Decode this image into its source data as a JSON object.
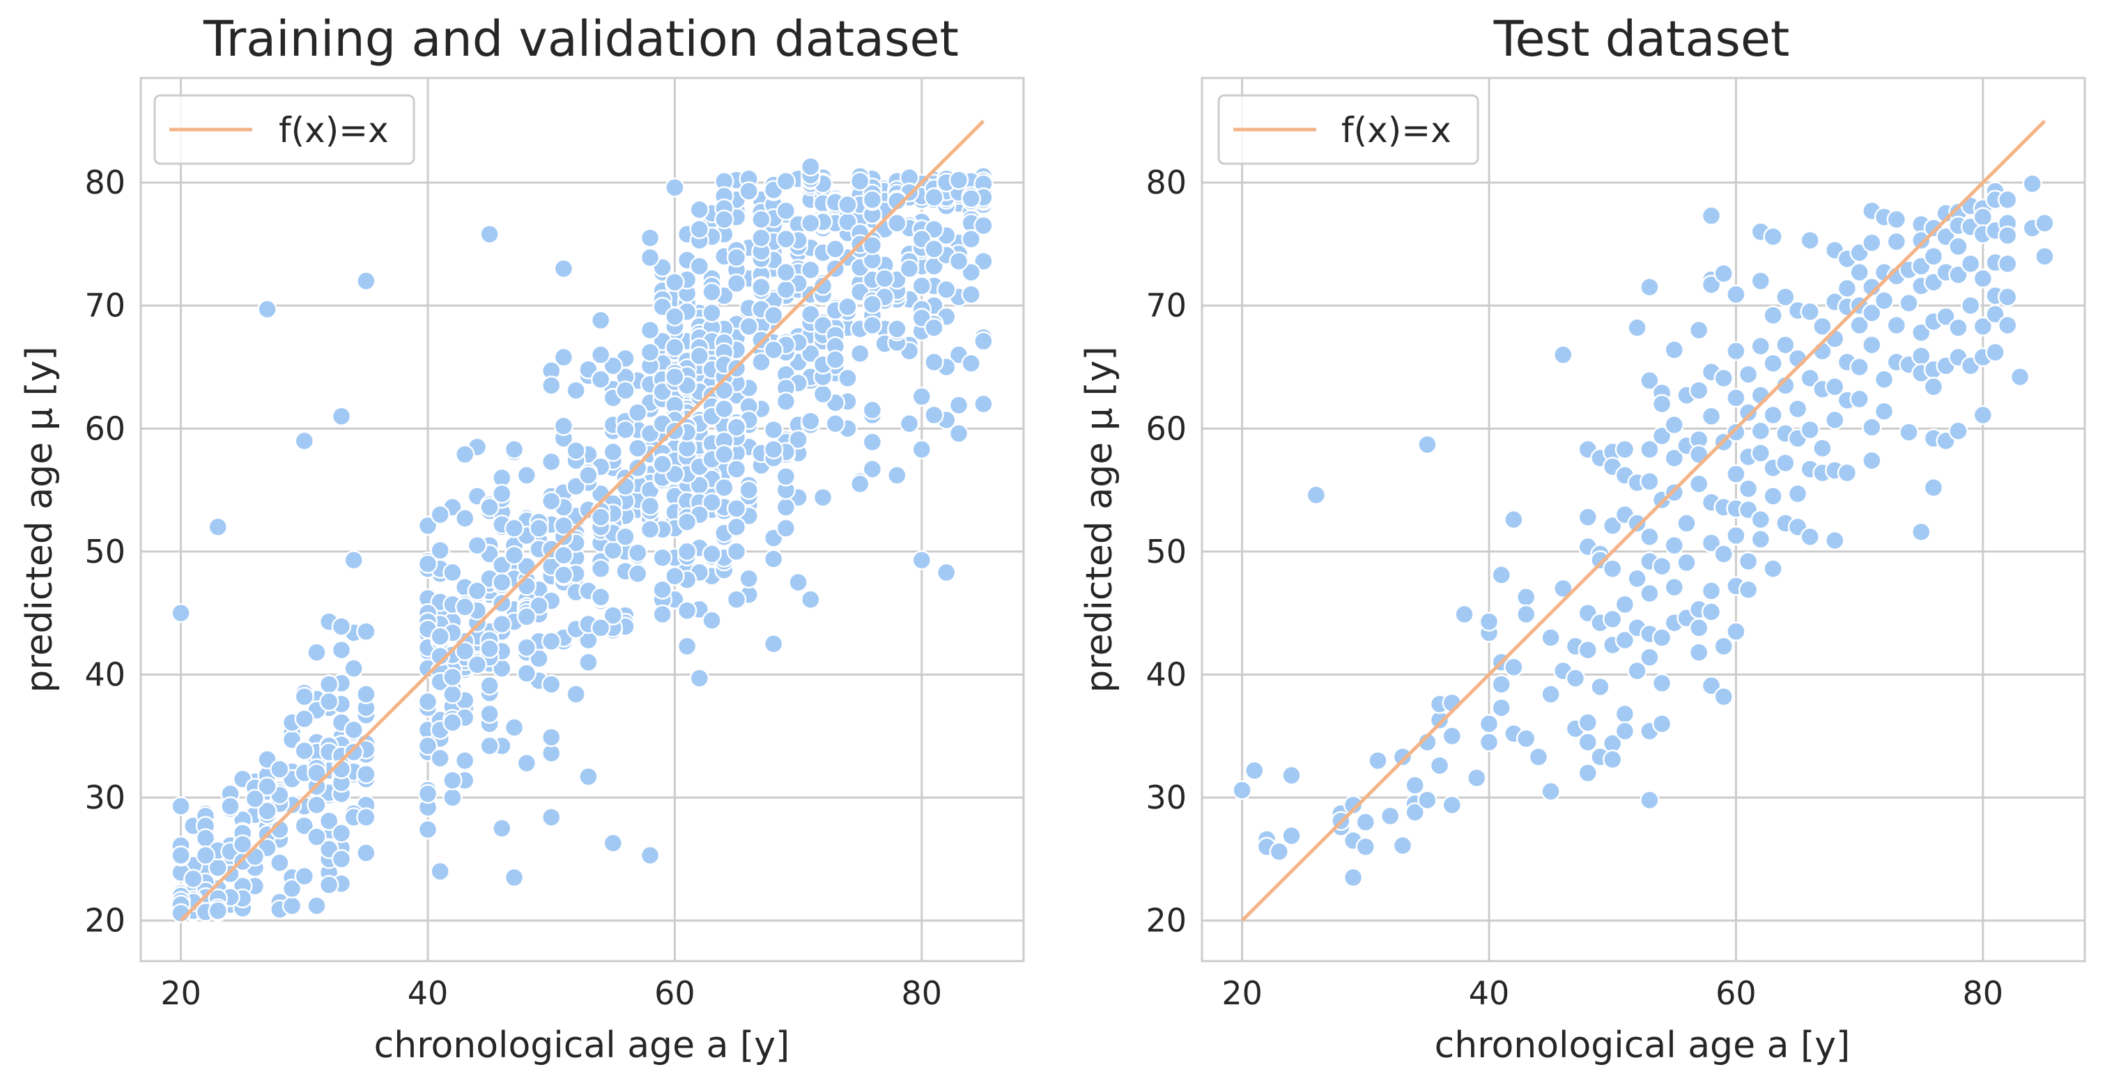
{
  "chart_data": [
    {
      "type": "scatter",
      "title": "Training and validation dataset",
      "xlabel": "chronological age a [y]",
      "ylabel": "predicted age µ [y]",
      "xlim": [
        16.75,
        88.25
      ],
      "ylim": [
        16.7,
        88.5
      ],
      "xticks": [
        20,
        40,
        60,
        80
      ],
      "yticks": [
        20,
        30,
        40,
        50,
        60,
        70,
        80
      ],
      "xtick_labels": [
        "20",
        "40",
        "60",
        "80"
      ],
      "ytick_labels": [
        "20",
        "30",
        "40",
        "50",
        "60",
        "70",
        "80"
      ],
      "grid": true,
      "legend": {
        "position": "top-left",
        "entries": [
          "f(x)=x"
        ]
      },
      "reference_line": {
        "label": "f(x)=x",
        "x": [
          20,
          85
        ],
        "y": [
          20,
          85
        ],
        "color": "#f4b487"
      },
      "point_color": "#a1c9f4",
      "n_points": 1300,
      "points_sample": [
        [
          27,
          69.7
        ],
        [
          35,
          72
        ],
        [
          45,
          75.8
        ],
        [
          20,
          45
        ],
        [
          23,
          52
        ],
        [
          30,
          59
        ],
        [
          33,
          61
        ],
        [
          46,
          27.5
        ],
        [
          47,
          23.5
        ],
        [
          55,
          26.3
        ],
        [
          58,
          25.3
        ],
        [
          53,
          31.7
        ],
        [
          62,
          39.7
        ],
        [
          80,
          49.3
        ],
        [
          71,
          81.3
        ],
        [
          83,
          80.2
        ],
        [
          85,
          62
        ],
        [
          51,
          73
        ],
        [
          70,
          47.5
        ],
        [
          75,
          55.5
        ]
      ]
    },
    {
      "type": "scatter",
      "title": "Test dataset",
      "xlabel": "chronological age a [y]",
      "ylabel": "predicted age µ [y]",
      "xlim": [
        16.75,
        88.25
      ],
      "ylim": [
        16.7,
        88.5
      ],
      "xticks": [
        20,
        40,
        60,
        80
      ],
      "yticks": [
        20,
        30,
        40,
        50,
        60,
        70,
        80
      ],
      "xtick_labels": [
        "20",
        "40",
        "60",
        "80"
      ],
      "ytick_labels": [
        "20",
        "30",
        "40",
        "50",
        "60",
        "70",
        "80"
      ],
      "grid": true,
      "legend": {
        "position": "top-left",
        "entries": [
          "f(x)=x"
        ]
      },
      "reference_line": {
        "label": "f(x)=x",
        "x": [
          20,
          85
        ],
        "y": [
          20,
          85
        ],
        "color": "#f4b487"
      },
      "point_color": "#a1c9f4",
      "points": [
        [
          20,
          30.6
        ],
        [
          21,
          32.2
        ],
        [
          22,
          26.6
        ],
        [
          22,
          26
        ],
        [
          23,
          25.6
        ],
        [
          24,
          31.8
        ],
        [
          24,
          26.9
        ],
        [
          26,
          54.6
        ],
        [
          28,
          28.7
        ],
        [
          28,
          27.6
        ],
        [
          28,
          28.1
        ],
        [
          29,
          29.4
        ],
        [
          29,
          23.5
        ],
        [
          29,
          26.5
        ],
        [
          30,
          26
        ],
        [
          30,
          28
        ],
        [
          31,
          33
        ],
        [
          32,
          28.5
        ],
        [
          33,
          33.3
        ],
        [
          33,
          26.1
        ],
        [
          34,
          29.5
        ],
        [
          34,
          31
        ],
        [
          34,
          28.8
        ],
        [
          35,
          58.7
        ],
        [
          35,
          34.5
        ],
        [
          35,
          29.8
        ],
        [
          36,
          36.3
        ],
        [
          36,
          37.6
        ],
        [
          36,
          32.6
        ],
        [
          37,
          37.7
        ],
        [
          37,
          35
        ],
        [
          37,
          29.4
        ],
        [
          38,
          44.9
        ],
        [
          39,
          31.6
        ],
        [
          40,
          43.4
        ],
        [
          40,
          44.3
        ],
        [
          40,
          36
        ],
        [
          40,
          34.5
        ],
        [
          41,
          48.1
        ],
        [
          41,
          39.2
        ],
        [
          41,
          37.3
        ],
        [
          41,
          41
        ],
        [
          42,
          52.6
        ],
        [
          42,
          40.6
        ],
        [
          42,
          35.2
        ],
        [
          43,
          46.3
        ],
        [
          43,
          44.9
        ],
        [
          43,
          34.8
        ],
        [
          44,
          33.3
        ],
        [
          45,
          43
        ],
        [
          45,
          38.4
        ],
        [
          45,
          30.5
        ],
        [
          46,
          66
        ],
        [
          46,
          47
        ],
        [
          46,
          40.3
        ],
        [
          47,
          39.7
        ],
        [
          47,
          35.6
        ],
        [
          47,
          42.3
        ],
        [
          48,
          58.3
        ],
        [
          48,
          52.8
        ],
        [
          48,
          50.4
        ],
        [
          48,
          45
        ],
        [
          48,
          42
        ],
        [
          48,
          36.1
        ],
        [
          48,
          34.5
        ],
        [
          48,
          32
        ],
        [
          49,
          57.6
        ],
        [
          49,
          49.8
        ],
        [
          49,
          49.3
        ],
        [
          49,
          44.2
        ],
        [
          49,
          39
        ],
        [
          49,
          33.3
        ],
        [
          50,
          58.1
        ],
        [
          50,
          56.9
        ],
        [
          50,
          52.1
        ],
        [
          50,
          48.6
        ],
        [
          50,
          44.5
        ],
        [
          50,
          42.4
        ],
        [
          50,
          34.4
        ],
        [
          50,
          33.1
        ],
        [
          51,
          58.3
        ],
        [
          51,
          56.2
        ],
        [
          51,
          53
        ],
        [
          51,
          45.7
        ],
        [
          51,
          42.8
        ],
        [
          51,
          36.8
        ],
        [
          51,
          35.4
        ],
        [
          52,
          68.2
        ],
        [
          52,
          55.6
        ],
        [
          52,
          52.3
        ],
        [
          52,
          47.8
        ],
        [
          52,
          43.8
        ],
        [
          52,
          40.3
        ],
        [
          53,
          71.5
        ],
        [
          53,
          63.9
        ],
        [
          53,
          58.3
        ],
        [
          53,
          55.7
        ],
        [
          53,
          51.2
        ],
        [
          53,
          49.2
        ],
        [
          53,
          46.6
        ],
        [
          53,
          43.3
        ],
        [
          53,
          41.4
        ],
        [
          53,
          35.4
        ],
        [
          53,
          29.8
        ],
        [
          54,
          62.9
        ],
        [
          54,
          62
        ],
        [
          54,
          59.4
        ],
        [
          54,
          54.2
        ],
        [
          54,
          48.8
        ],
        [
          54,
          43
        ],
        [
          54,
          39.3
        ],
        [
          54,
          36
        ],
        [
          55,
          66.4
        ],
        [
          55,
          60.3
        ],
        [
          55,
          57.6
        ],
        [
          55,
          54.8
        ],
        [
          55,
          50.5
        ],
        [
          55,
          47.1
        ],
        [
          55,
          44.2
        ],
        [
          56,
          62.7
        ],
        [
          56,
          58.6
        ],
        [
          56,
          52.3
        ],
        [
          56,
          49.1
        ],
        [
          56,
          44.6
        ],
        [
          57,
          68
        ],
        [
          57,
          63.1
        ],
        [
          57,
          59.1
        ],
        [
          57,
          57.9
        ],
        [
          57,
          55.5
        ],
        [
          57,
          45.3
        ],
        [
          57,
          43.8
        ],
        [
          57,
          41.8
        ],
        [
          58,
          77.3
        ],
        [
          58,
          72.1
        ],
        [
          58,
          71.7
        ],
        [
          58,
          64.6
        ],
        [
          58,
          61
        ],
        [
          58,
          54
        ],
        [
          58,
          50.7
        ],
        [
          58,
          46.8
        ],
        [
          58,
          45.1
        ],
        [
          58,
          39.1
        ],
        [
          59,
          72.6
        ],
        [
          59,
          64.1
        ],
        [
          59,
          58.9
        ],
        [
          59,
          53.6
        ],
        [
          59,
          49.8
        ],
        [
          59,
          42.3
        ],
        [
          59,
          38.2
        ],
        [
          60,
          70.9
        ],
        [
          60,
          66.3
        ],
        [
          60,
          62.5
        ],
        [
          60,
          59.7
        ],
        [
          60,
          56.3
        ],
        [
          60,
          53.5
        ],
        [
          60,
          51.3
        ],
        [
          60,
          47.2
        ],
        [
          60,
          43.5
        ],
        [
          61,
          64.4
        ],
        [
          61,
          61.3
        ],
        [
          61,
          57.7
        ],
        [
          61,
          55.1
        ],
        [
          61,
          53.4
        ],
        [
          61,
          49.2
        ],
        [
          61,
          46.9
        ],
        [
          62,
          76
        ],
        [
          62,
          72
        ],
        [
          62,
          66.7
        ],
        [
          62,
          62.7
        ],
        [
          62,
          59.8
        ],
        [
          62,
          58
        ],
        [
          62,
          52.6
        ],
        [
          62,
          51
        ],
        [
          63,
          75.6
        ],
        [
          63,
          69.2
        ],
        [
          63,
          65.3
        ],
        [
          63,
          61.1
        ],
        [
          63,
          56.8
        ],
        [
          63,
          54.5
        ],
        [
          63,
          48.6
        ],
        [
          64,
          70.7
        ],
        [
          64,
          66.8
        ],
        [
          64,
          63.5
        ],
        [
          64,
          59.6
        ],
        [
          64,
          57.2
        ],
        [
          64,
          52.3
        ],
        [
          65,
          69.6
        ],
        [
          65,
          65.7
        ],
        [
          65,
          61.6
        ],
        [
          65,
          59.2
        ],
        [
          65,
          54.7
        ],
        [
          65,
          52
        ],
        [
          66,
          75.3
        ],
        [
          66,
          69.5
        ],
        [
          66,
          64.1
        ],
        [
          66,
          59.9
        ],
        [
          66,
          56.7
        ],
        [
          66,
          51.2
        ],
        [
          67,
          68.3
        ],
        [
          67,
          66.3
        ],
        [
          67,
          63.2
        ],
        [
          67,
          58.4
        ],
        [
          67,
          56.4
        ],
        [
          68,
          74.5
        ],
        [
          68,
          70.3
        ],
        [
          68,
          67.3
        ],
        [
          68,
          63.4
        ],
        [
          68,
          60.7
        ],
        [
          68,
          56.6
        ],
        [
          68,
          50.9
        ],
        [
          69,
          73.8
        ],
        [
          69,
          71.4
        ],
        [
          69,
          69.9
        ],
        [
          69,
          65.4
        ],
        [
          69,
          62.3
        ],
        [
          69,
          56.4
        ],
        [
          70,
          74.3
        ],
        [
          70,
          72.7
        ],
        [
          70,
          70
        ],
        [
          70,
          68.4
        ],
        [
          70,
          65
        ],
        [
          70,
          62.4
        ],
        [
          71,
          77.7
        ],
        [
          71,
          75.1
        ],
        [
          71,
          71.5
        ],
        [
          71,
          69.4
        ],
        [
          71,
          66.8
        ],
        [
          71,
          60.1
        ],
        [
          71,
          57.4
        ],
        [
          72,
          77.2
        ],
        [
          72,
          72.7
        ],
        [
          72,
          70.4
        ],
        [
          72,
          64
        ],
        [
          72,
          61.4
        ],
        [
          73,
          77
        ],
        [
          73,
          75.2
        ],
        [
          73,
          72.4
        ],
        [
          73,
          68.4
        ],
        [
          73,
          65.4
        ],
        [
          74,
          72.9
        ],
        [
          74,
          70.2
        ],
        [
          74,
          65.2
        ],
        [
          74,
          59.7
        ],
        [
          75,
          76.6
        ],
        [
          75,
          75.3
        ],
        [
          75,
          73.2
        ],
        [
          75,
          71.6
        ],
        [
          75,
          67.8
        ],
        [
          75,
          65.9
        ],
        [
          75,
          64.5
        ],
        [
          75,
          51.6
        ],
        [
          76,
          76.3
        ],
        [
          76,
          74
        ],
        [
          76,
          71.9
        ],
        [
          76,
          68.7
        ],
        [
          76,
          64.8
        ],
        [
          76,
          63.4
        ],
        [
          76,
          59.2
        ],
        [
          76,
          55.2
        ],
        [
          77,
          77.5
        ],
        [
          77,
          75.6
        ],
        [
          77,
          72.7
        ],
        [
          77,
          69.1
        ],
        [
          77,
          65.1
        ],
        [
          77,
          59
        ],
        [
          78,
          77.6
        ],
        [
          78,
          76.5
        ],
        [
          78,
          74.8
        ],
        [
          78,
          72.5
        ],
        [
          78,
          68.2
        ],
        [
          78,
          65.8
        ],
        [
          78,
          59.8
        ],
        [
          79,
          78.1
        ],
        [
          79,
          76.4
        ],
        [
          79,
          73.4
        ],
        [
          79,
          70
        ],
        [
          79,
          65.1
        ],
        [
          80,
          77.9
        ],
        [
          80,
          77.2
        ],
        [
          80,
          75.8
        ],
        [
          80,
          72.2
        ],
        [
          80,
          68.3
        ],
        [
          80,
          65.8
        ],
        [
          80,
          61.1
        ],
        [
          81,
          79.3
        ],
        [
          81,
          78.6
        ],
        [
          81,
          76.1
        ],
        [
          81,
          73.5
        ],
        [
          81,
          70.8
        ],
        [
          81,
          69.3
        ],
        [
          81,
          66.2
        ],
        [
          82,
          78.6
        ],
        [
          82,
          76.7
        ],
        [
          82,
          75.7
        ],
        [
          82,
          73.4
        ],
        [
          82,
          70.7
        ],
        [
          82,
          68.4
        ],
        [
          83,
          64.2
        ],
        [
          84,
          79.9
        ],
        [
          84,
          76.3
        ],
        [
          85,
          76.7
        ],
        [
          85,
          74
        ]
      ]
    }
  ]
}
